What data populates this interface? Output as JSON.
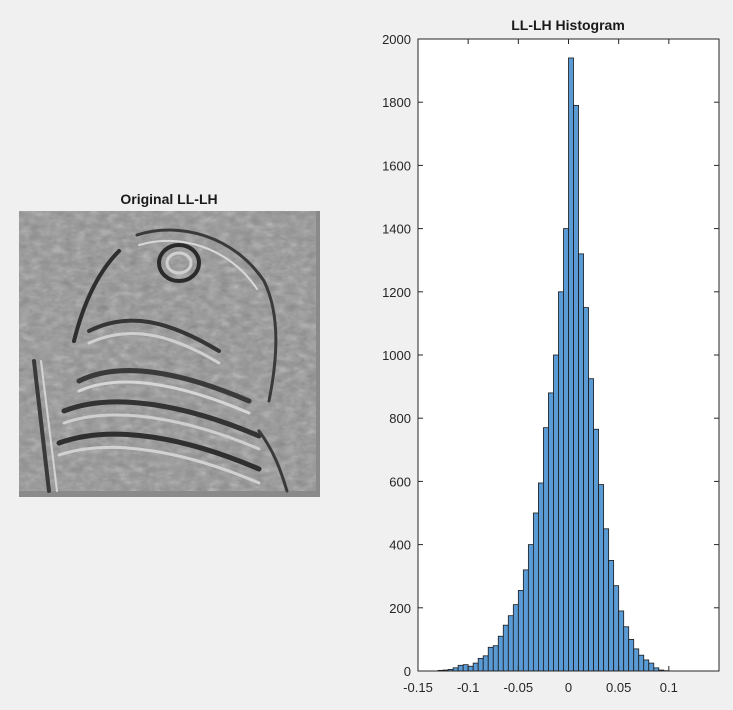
{
  "figure": {
    "left_title": "Original LL-LH",
    "right_title": "LL-LH Histogram"
  },
  "image_panel": {
    "content": "wavelet detail image (grayscale edge map of an owl)"
  },
  "chart_data": {
    "type": "bar",
    "title": "LL-LH Histogram",
    "xlabel": "",
    "ylabel": "",
    "xlim": [
      -0.15,
      0.15
    ],
    "ylim": [
      0,
      2000
    ],
    "grid": false,
    "bar_color": "#5b9bd5",
    "edge_color": "#1a1a1a",
    "xticks": [
      -0.15,
      -0.1,
      -0.05,
      0,
      0.05,
      0.1
    ],
    "xtick_labels": [
      "-0.15",
      "-0.1",
      "-0.05",
      "0",
      "0.05",
      "0.1"
    ],
    "yticks": [
      0,
      200,
      400,
      600,
      800,
      1000,
      1200,
      1400,
      1600,
      1800,
      2000
    ],
    "ytick_labels": [
      "0",
      "200",
      "400",
      "600",
      "800",
      "1000",
      "1200",
      "1400",
      "1600",
      "1800",
      "2000"
    ],
    "bin_start": -0.13,
    "bin_width": 0.005,
    "values": [
      2,
      3,
      5,
      10,
      18,
      20,
      15,
      25,
      40,
      48,
      75,
      80,
      110,
      145,
      175,
      210,
      255,
      320,
      400,
      500,
      595,
      770,
      880,
      1000,
      1200,
      1400,
      1940,
      1790,
      1320,
      1150,
      925,
      765,
      590,
      450,
      350,
      270,
      190,
      140,
      100,
      70,
      50,
      35,
      25,
      10,
      3,
      1
    ]
  }
}
